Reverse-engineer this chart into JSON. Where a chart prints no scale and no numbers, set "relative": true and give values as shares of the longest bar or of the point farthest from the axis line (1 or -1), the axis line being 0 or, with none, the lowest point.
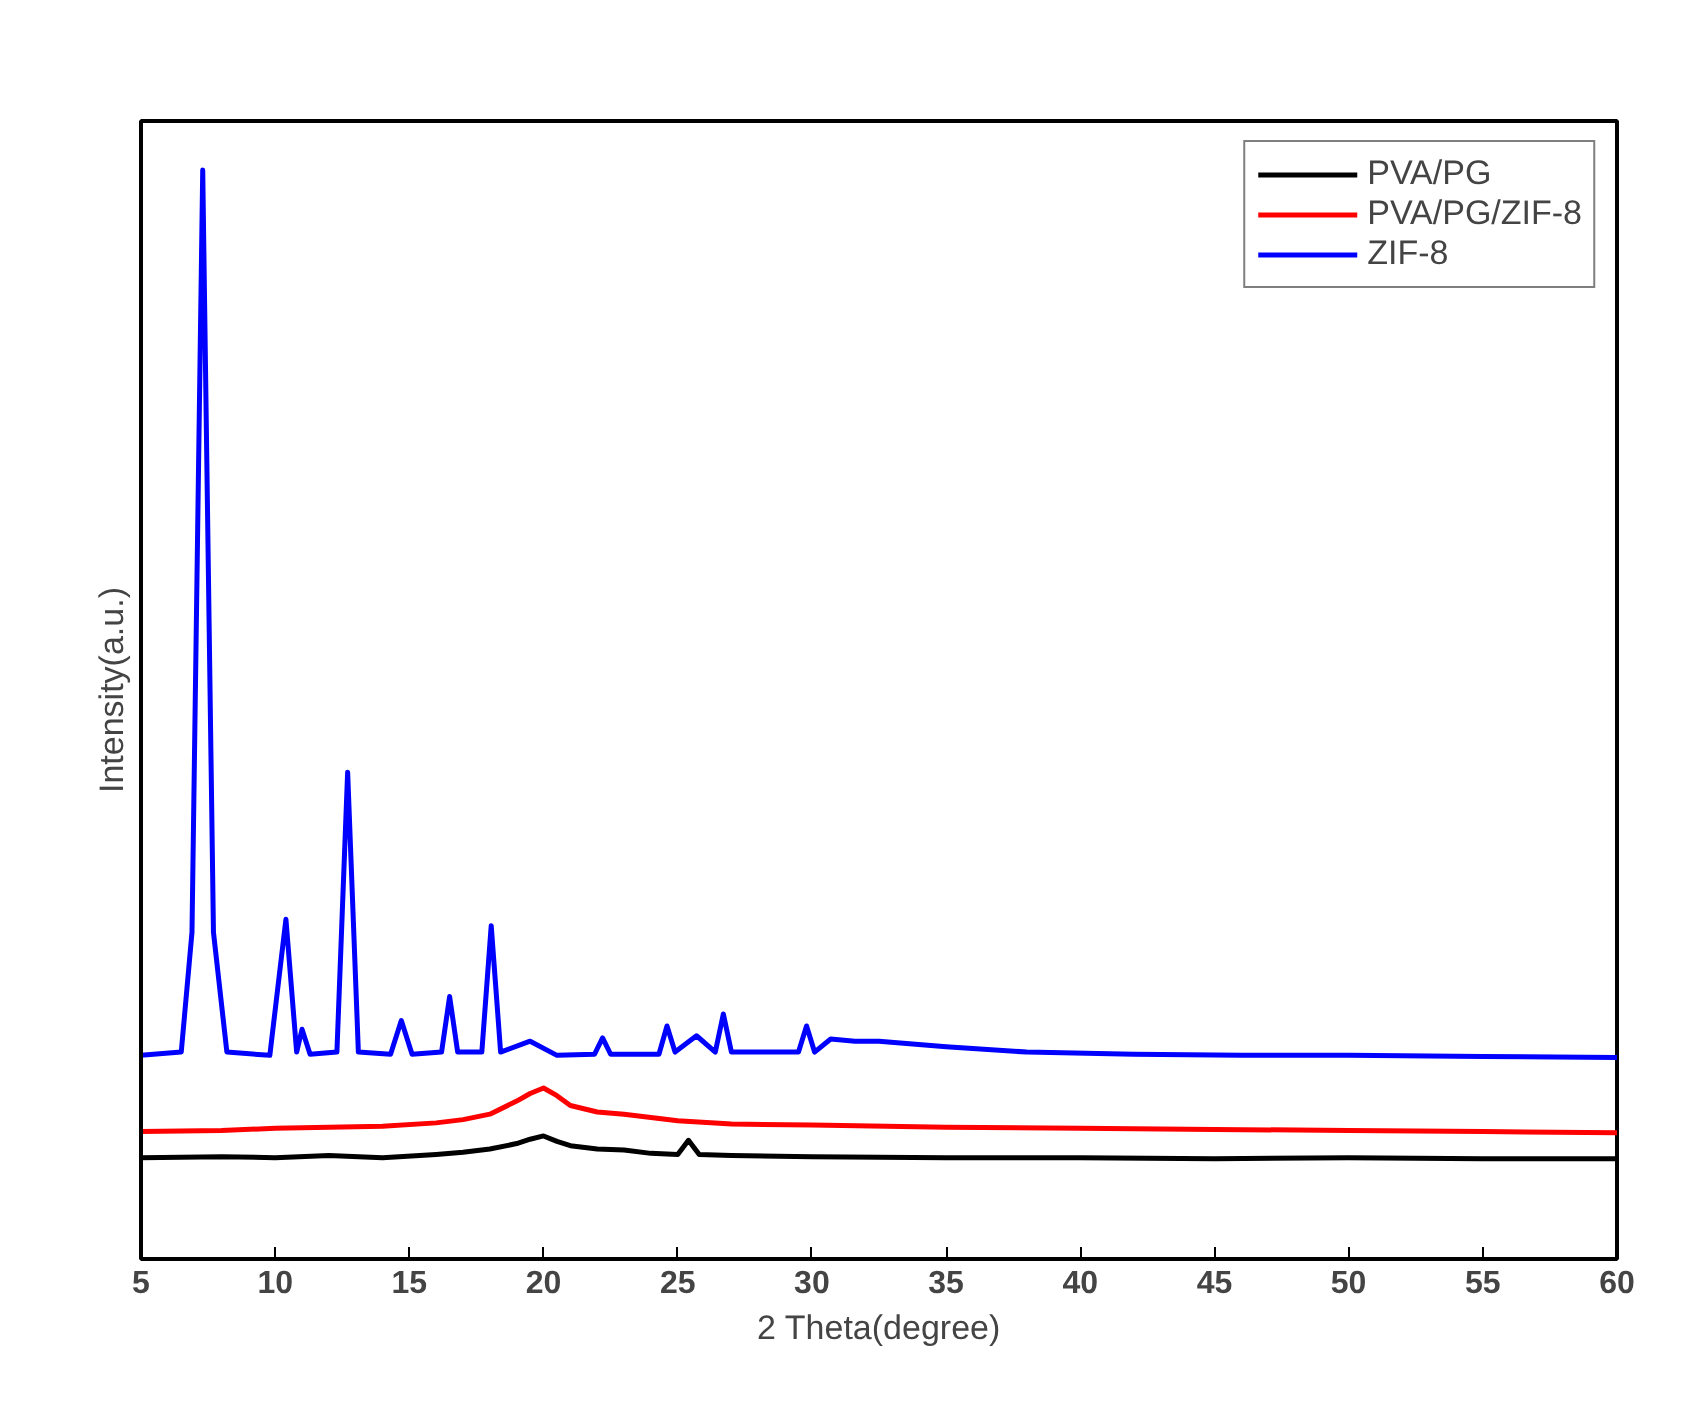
{
  "chart_data": {
    "type": "line",
    "relative": true,
    "xlabel": "2 Theta(degree)",
    "ylabel": "Intensity(a.u.)",
    "xlim": [
      5,
      60
    ],
    "xticks": [
      5,
      10,
      15,
      20,
      25,
      30,
      35,
      40,
      45,
      50,
      55,
      60
    ],
    "grid": false,
    "legend": "top right",
    "series": [
      {
        "name": "PVA/PG",
        "color": "#000000",
        "x": [
          5,
          8,
          10,
          12,
          14,
          16,
          17,
          18,
          19,
          19.5,
          20,
          20.5,
          21,
          22,
          23,
          24,
          25,
          25.4,
          25.8,
          27,
          30,
          35,
          40,
          45,
          50,
          55,
          60
        ],
        "values": [
          0.093,
          0.094,
          0.093,
          0.095,
          0.093,
          0.096,
          0.098,
          0.101,
          0.106,
          0.11,
          0.113,
          0.108,
          0.104,
          0.101,
          0.1,
          0.097,
          0.096,
          0.109,
          0.096,
          0.095,
          0.094,
          0.093,
          0.093,
          0.092,
          0.093,
          0.092,
          0.092
        ]
      },
      {
        "name": "PVA/PG/ZIF-8",
        "color": "#ff0000",
        "x": [
          5,
          8,
          10,
          12,
          14,
          16,
          17,
          18,
          19,
          19.5,
          20,
          20.5,
          21,
          22,
          23,
          24,
          25,
          27,
          30,
          35,
          40,
          45,
          50,
          55,
          60
        ],
        "values": [
          0.117,
          0.118,
          0.12,
          0.121,
          0.122,
          0.125,
          0.128,
          0.133,
          0.145,
          0.152,
          0.157,
          0.15,
          0.141,
          0.135,
          0.133,
          0.13,
          0.127,
          0.124,
          0.123,
          0.121,
          0.12,
          0.119,
          0.118,
          0.117,
          0.116
        ]
      },
      {
        "name": "ZIF-8",
        "color": "#0000ff",
        "x": [
          5,
          6.5,
          6.9,
          7.3,
          7.7,
          8.2,
          9.8,
          10.4,
          10.8,
          11.0,
          11.3,
          12.3,
          12.7,
          13.1,
          14.3,
          14.7,
          15.1,
          16.2,
          16.5,
          16.8,
          17.7,
          18.05,
          18.4,
          19.5,
          20.5,
          21.9,
          22.2,
          22.5,
          24.3,
          24.6,
          24.9,
          25.7,
          26.4,
          26.7,
          27.0,
          29.5,
          29.8,
          30.1,
          30.7,
          31.6,
          32.5,
          35.0,
          38,
          42,
          46,
          50,
          55,
          60
        ],
        "values": [
          0.187,
          0.19,
          0.3,
          1.0,
          0.3,
          0.19,
          0.187,
          0.312,
          0.19,
          0.211,
          0.188,
          0.19,
          0.447,
          0.19,
          0.188,
          0.219,
          0.188,
          0.19,
          0.241,
          0.19,
          0.19,
          0.306,
          0.19,
          0.2,
          0.187,
          0.188,
          0.203,
          0.188,
          0.188,
          0.214,
          0.19,
          0.205,
          0.19,
          0.225,
          0.19,
          0.19,
          0.214,
          0.19,
          0.202,
          0.2,
          0.2,
          0.195,
          0.19,
          0.188,
          0.187,
          0.187,
          0.186,
          0.185
        ]
      }
    ]
  }
}
